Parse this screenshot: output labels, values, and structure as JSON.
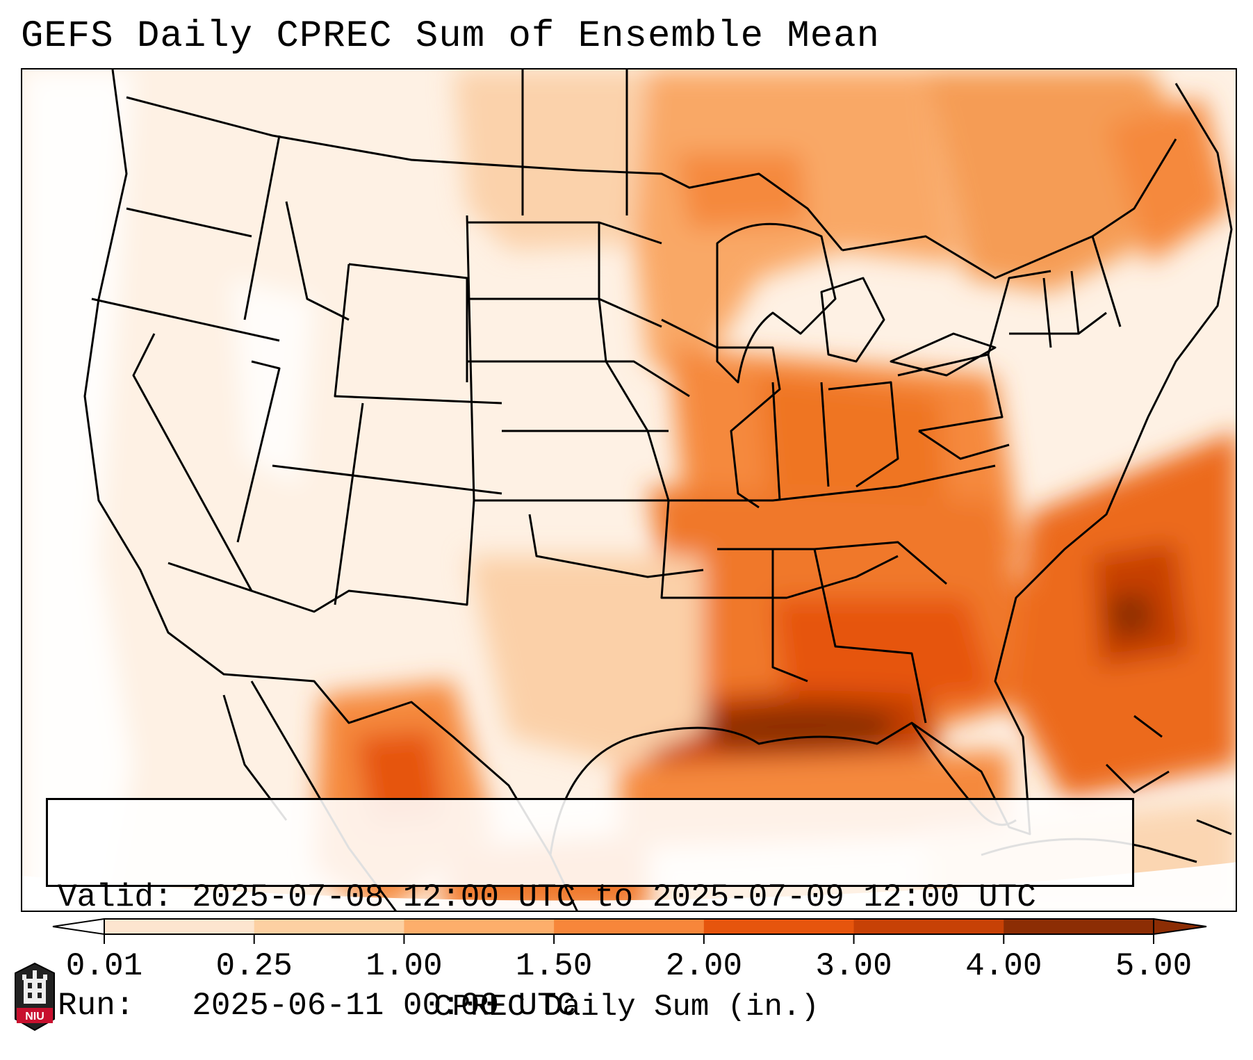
{
  "title": "GEFS Daily CPREC Sum of Ensemble Mean",
  "info": {
    "valid_label": "Valid:",
    "valid_value": "2025-07-08 12:00 UTC to 2025-07-09 12:00 UTC",
    "run_label": "Run:",
    "run_value": "2025-06-11 00:00 UTC"
  },
  "colorbar": {
    "label": "CPREC Daily Sum (in.)",
    "ticks": [
      "0.01",
      "0.25",
      "1.00",
      "1.50",
      "2.00",
      "3.00",
      "4.00",
      "5.00"
    ],
    "colors": [
      "#ffffff",
      "#fde5cf",
      "#fdd0a2",
      "#fdae6b",
      "#f7863a",
      "#e6550d",
      "#c74106",
      "#8c2d04"
    ]
  },
  "logo": {
    "text": "NIU",
    "icon": "university-tower-logo",
    "color": "#c8102e"
  }
}
